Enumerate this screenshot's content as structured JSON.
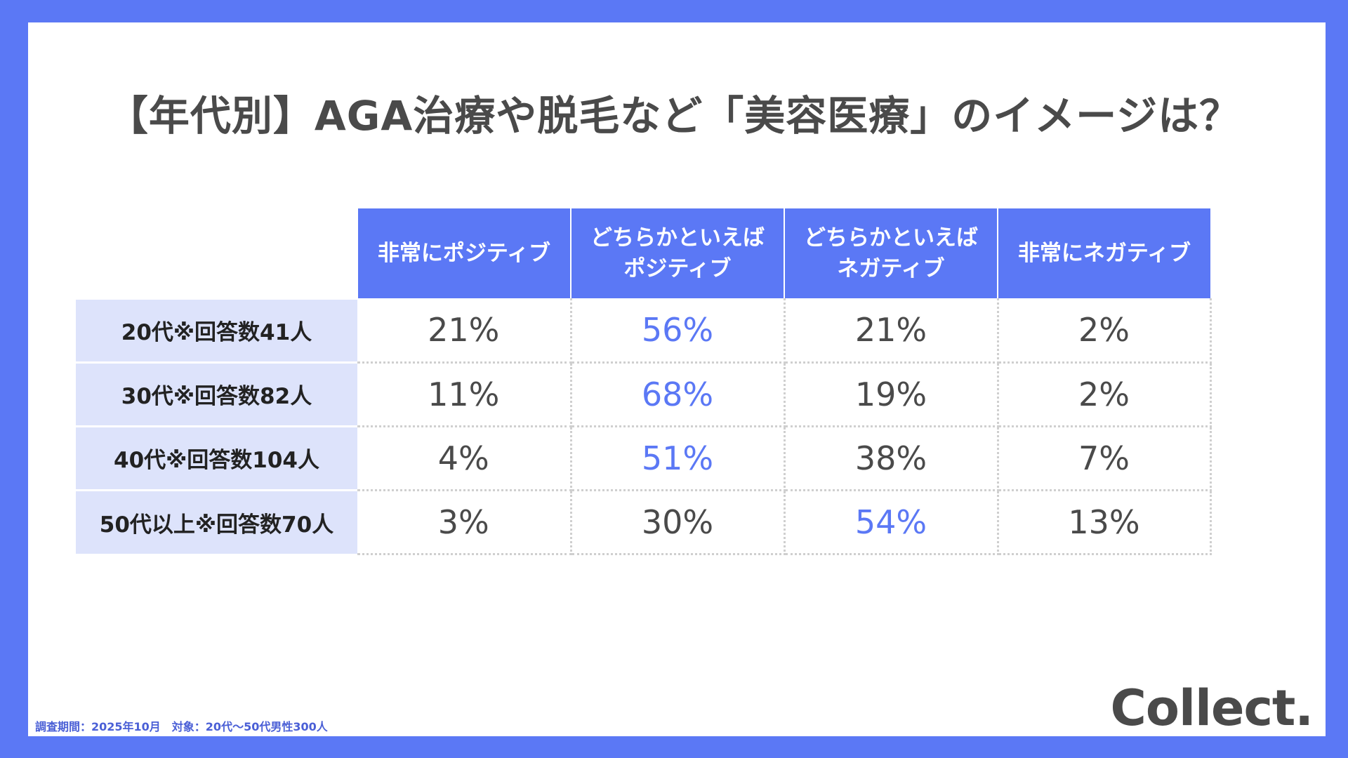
{
  "title": "【年代別】AGA治療や脱毛など「美容医療」のイメージは？",
  "chart_data": {
    "type": "table",
    "columns": [
      "非常にポジティブ",
      "どちらかといえば\nポジティブ",
      "どちらかといえば\nネガティブ",
      "非常にネガティブ"
    ],
    "rows": [
      {
        "label": "20代※回答数41人",
        "values": [
          "21%",
          "56%",
          "21%",
          "2%"
        ],
        "highlight": 1
      },
      {
        "label": "30代※回答数82人",
        "values": [
          "11%",
          "68%",
          "19%",
          "2%"
        ],
        "highlight": 1
      },
      {
        "label": "40代※回答数104人",
        "values": [
          "4%",
          "51%",
          "38%",
          "7%"
        ],
        "highlight": 1
      },
      {
        "label": "50代以上※回答数70人",
        "values": [
          "3%",
          "30%",
          "54%",
          "13%"
        ],
        "highlight": 2
      }
    ],
    "colors": {
      "header": "#5b78f5",
      "row_header": "#dde3fb",
      "highlight": "#5b78f5",
      "text": "#4a4a4a"
    }
  },
  "footnote": "調査期間：2025年10月　対象：20代〜50代男性300人",
  "logo": "Collect."
}
